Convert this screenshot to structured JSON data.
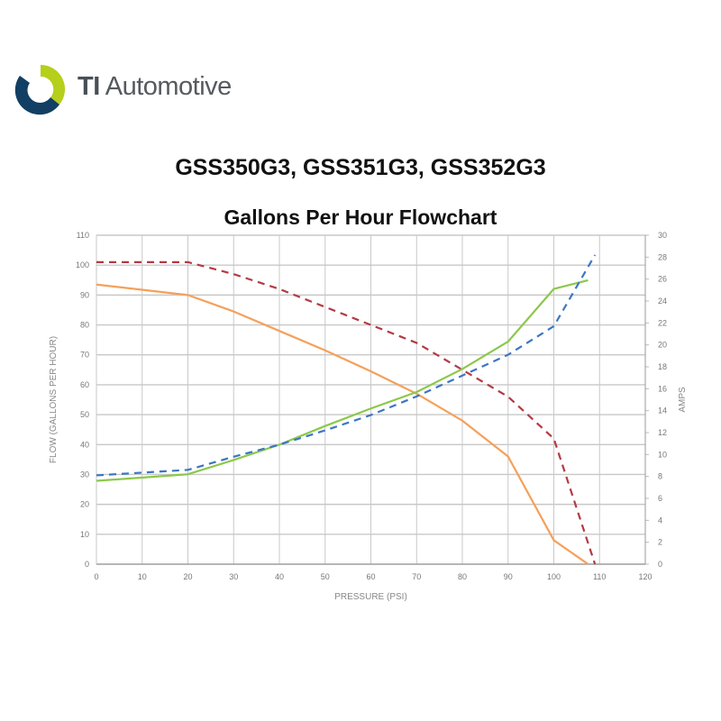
{
  "brand": {
    "strong": "TI",
    "rest": " Automotive",
    "colors": {
      "navy": "#123f63",
      "lime": "#b5cf1a"
    }
  },
  "title": "GSS350G3, GSS351G3, GSS352G3",
  "chart_data": {
    "type": "line",
    "title": "Gallons Per Hour Flowchart",
    "xlabel": "PRESSURE (PSI)",
    "ylabel": "FLOW (GALLONS PER HOUR)",
    "y2label": "AMPS",
    "xlim": [
      0,
      120
    ],
    "ylim": [
      0,
      110
    ],
    "y2lim": [
      0,
      30
    ],
    "xticks": [
      0,
      10,
      20,
      30,
      40,
      50,
      60,
      70,
      80,
      90,
      100,
      110,
      120
    ],
    "yticks": [
      0,
      10,
      20,
      30,
      40,
      50,
      60,
      70,
      80,
      90,
      100,
      110
    ],
    "y2ticks": [
      0,
      2,
      4,
      6,
      8,
      10,
      12,
      14,
      16,
      18,
      20,
      22,
      24,
      26,
      28,
      30
    ],
    "grid": true,
    "series": [
      {
        "axis": "left",
        "color": "#b33a44",
        "dashed": true,
        "x": [
          0,
          20,
          30,
          40,
          50,
          60,
          70,
          80,
          90,
          100,
          109
        ],
        "y": [
          101,
          101,
          97,
          92,
          86,
          80,
          74,
          65,
          56,
          42,
          0
        ]
      },
      {
        "axis": "left",
        "color": "#f5a05a",
        "dashed": false,
        "x": [
          0,
          20,
          30,
          40,
          50,
          60,
          70,
          80,
          90,
          100,
          107.5
        ],
        "y": [
          93.5,
          90,
          84.5,
          78,
          71.5,
          64.5,
          57,
          48,
          36,
          8,
          0
        ]
      },
      {
        "axis": "right",
        "color": "#8cc84b",
        "dashed": false,
        "x": [
          0,
          20,
          30,
          40,
          50,
          60,
          70,
          80,
          90,
          100,
          107.5
        ],
        "y": [
          7.6,
          8.2,
          9.5,
          10.9,
          12.6,
          14.2,
          15.7,
          17.8,
          20.3,
          25.1,
          25.9
        ]
      },
      {
        "axis": "right",
        "color": "#3b76c4",
        "dashed": true,
        "x": [
          0,
          20,
          30,
          40,
          50,
          60,
          70,
          80,
          90,
          100,
          109
        ],
        "y": [
          8.1,
          8.6,
          9.8,
          10.9,
          12.2,
          13.6,
          15.3,
          17.2,
          19.1,
          21.7,
          28.2
        ]
      }
    ]
  }
}
